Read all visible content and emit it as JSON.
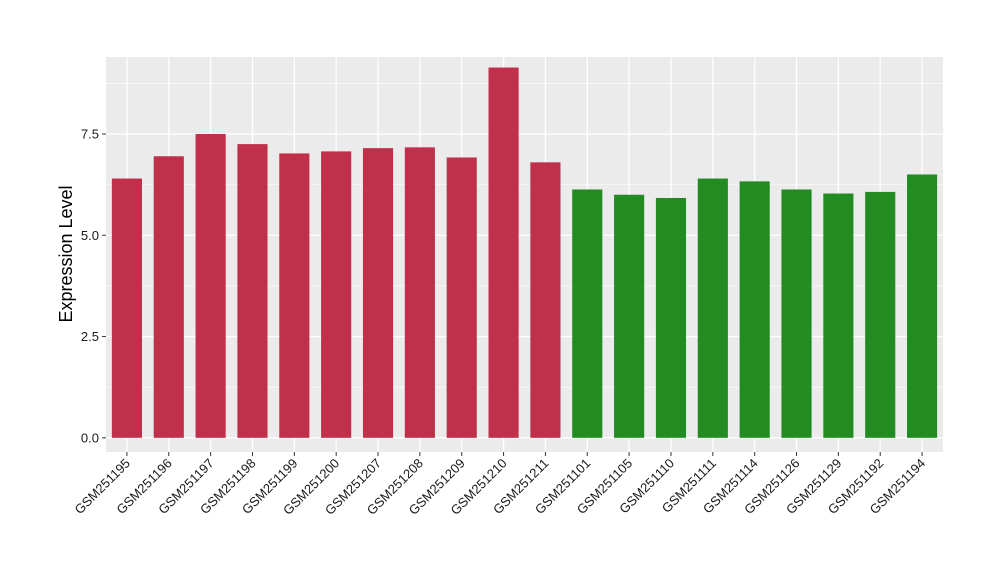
{
  "chart_data": {
    "type": "bar",
    "ylabel": "Expression Level",
    "xlabel": "",
    "ylim": [
      -0.35,
      9.4
    ],
    "yticks": [
      0.0,
      2.5,
      5.0,
      7.5
    ],
    "ytick_labels": [
      "0.0",
      "2.5",
      "5.0",
      "7.5"
    ],
    "grid": true,
    "categories": [
      "GSM251195",
      "GSM251196",
      "GSM251197",
      "GSM251198",
      "GSM251199",
      "GSM251200",
      "GSM251207",
      "GSM251208",
      "GSM251209",
      "GSM251210",
      "GSM251211",
      "GSM251101",
      "GSM251105",
      "GSM251110",
      "GSM251111",
      "GSM251114",
      "GSM251126",
      "GSM251129",
      "GSM251192",
      "GSM251194"
    ],
    "values": [
      6.4,
      6.95,
      7.5,
      7.25,
      7.02,
      7.07,
      7.15,
      7.17,
      6.92,
      9.14,
      6.8,
      6.13,
      6.0,
      5.92,
      6.4,
      6.33,
      6.13,
      6.03,
      6.07,
      6.5
    ],
    "group_colors": [
      "#C0304A",
      "#C0304A",
      "#C0304A",
      "#C0304A",
      "#C0304A",
      "#C0304A",
      "#C0304A",
      "#C0304A",
      "#C0304A",
      "#C0304A",
      "#C0304A",
      "#228B22",
      "#228B22",
      "#228B22",
      "#228B22",
      "#228B22",
      "#228B22",
      "#228B22",
      "#228B22",
      "#228B22"
    ],
    "panel_background": "#EBEBEB",
    "grid_color": "#FFFFFF"
  }
}
